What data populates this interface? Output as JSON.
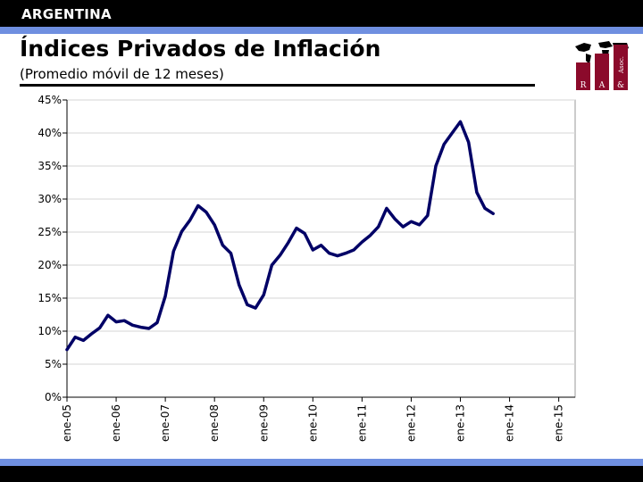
{
  "header": {
    "banner": "ARGENTINA",
    "title": "Índices Privados de Inflación",
    "subtitle": "(Promedio móvil de 12 meses)"
  },
  "logo": {
    "letters": [
      "R",
      "A",
      "&",
      "Asoc."
    ]
  },
  "colors": {
    "line": "#000066",
    "accent_stripe": "#6f8fe0",
    "logo_red": "#8b0a2b"
  },
  "chart_data": {
    "type": "line",
    "title": "Índices Privados de Inflación",
    "subtitle": "(Promedio móvil de 12 meses)",
    "xlabel": "",
    "ylabel": "",
    "ylim": [
      0,
      45
    ],
    "yticks": [
      0,
      5,
      10,
      15,
      20,
      25,
      30,
      35,
      40,
      45
    ],
    "ytick_labels": [
      "0%",
      "5%",
      "10%",
      "15%",
      "20%",
      "25%",
      "30%",
      "35%",
      "40%",
      "45%"
    ],
    "xtick_labels": [
      "ene-05",
      "ene-06",
      "ene-07",
      "ene-08",
      "ene-09",
      "ene-10",
      "ene-11",
      "ene-12",
      "ene-13",
      "ene-14",
      "ene-15"
    ],
    "xlim_months": [
      0,
      124
    ],
    "grid": true,
    "legend": "none",
    "series": [
      {
        "name": "Índices Privados de Inflación (promedio móvil 12 meses)",
        "x_months": [
          0,
          2,
          4,
          6,
          8,
          10,
          12,
          14,
          16,
          18,
          20,
          22,
          24,
          26,
          28,
          30,
          32,
          34,
          36,
          38,
          40,
          42,
          44,
          46,
          48,
          50,
          52,
          54,
          56,
          58,
          60,
          62,
          64,
          66,
          68,
          70,
          72,
          74,
          76,
          78,
          80,
          82,
          84,
          86,
          88,
          90,
          92,
          94,
          96,
          98,
          100,
          102,
          104,
          106,
          108,
          110,
          112,
          114,
          116,
          118,
          120,
          122,
          124
        ],
        "values": [
          7.2,
          9.1,
          8.6,
          9.6,
          10.5,
          12.4,
          11.4,
          11.6,
          10.9,
          10.6,
          10.4,
          11.3,
          15.3,
          22.1,
          25.1,
          26.8,
          29.0,
          28.0,
          26.1,
          23.0,
          21.8,
          17.0,
          14.0,
          13.5,
          15.5,
          20.0,
          21.5,
          23.4,
          25.6,
          24.8,
          22.3,
          23.0,
          21.8,
          21.4,
          21.8,
          22.3,
          23.5,
          24.5,
          25.8,
          28.6,
          27.0,
          25.8,
          26.6,
          26.1,
          27.5,
          35.0,
          38.3,
          40.0,
          41.7,
          38.6,
          31.0,
          28.6,
          27.8,
          null,
          null,
          null,
          null,
          null,
          null,
          null,
          null,
          null,
          null
        ]
      }
    ]
  }
}
